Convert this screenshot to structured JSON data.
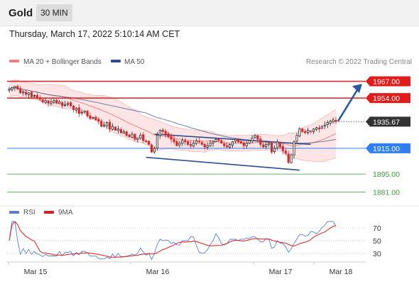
{
  "header": {
    "title": "Gold",
    "timeframe": "30 MIN"
  },
  "datetime": "Thursday, March 17, 2022 5:10:14 AM CET",
  "credit": "Research © 2022 Trading Central",
  "legend": [
    {
      "label": "MA 20 + Bollinger Bands",
      "color": "#f08080"
    },
    {
      "label": "MA 50",
      "color": "#2b4f8c"
    }
  ],
  "rsi_legend": [
    {
      "label": "RSI",
      "color": "#5b7fd6"
    },
    {
      "label": "9MA",
      "color": "#e21b1b"
    }
  ],
  "colors": {
    "resistance": "#e21b1b",
    "support": "#2f7fef",
    "target": "#3a9b3a",
    "arrow": "#2b5aa0",
    "channel": "#2b4f8c",
    "up": "#2b2b2b",
    "down": "#d9262b"
  },
  "chart_data": [
    {
      "type": "candlestick",
      "x_labels": [
        "Mar 15",
        "Mar 16",
        "Mar 17",
        "Mar 18"
      ],
      "ylim": [
        1873,
        1975
      ],
      "price_levels": [
        {
          "value": 1967.0,
          "label": "1967.00",
          "kind": "resistance"
        },
        {
          "value": 1954.0,
          "label": "1954.00",
          "kind": "resistance"
        },
        {
          "value": 1935.67,
          "label": "1935.67",
          "kind": "current"
        },
        {
          "value": 1915.0,
          "label": "1915.00",
          "kind": "pivot"
        },
        {
          "value": 1895.0,
          "label": "1895.00",
          "kind": "support"
        },
        {
          "value": 1881.0,
          "label": "1881.00",
          "kind": "support"
        }
      ],
      "close": [
        1961,
        1962,
        1963,
        1961,
        1958,
        1959,
        1957,
        1958,
        1955,
        1956,
        1954,
        1953,
        1951,
        1952,
        1950,
        1951,
        1952,
        1950,
        1951,
        1948,
        1949,
        1950,
        1948,
        1945,
        1946,
        1942,
        1943,
        1944,
        1940,
        1938,
        1939,
        1937,
        1936,
        1932,
        1933,
        1935,
        1930,
        1932,
        1929,
        1930,
        1927,
        1928,
        1925,
        1924,
        1926,
        1922,
        1923,
        1925,
        1921,
        1920,
        1918,
        1912,
        1915,
        1925,
        1929,
        1928,
        1926,
        1924,
        1922,
        1920,
        1917,
        1919,
        1921,
        1920,
        1918,
        1917,
        1919,
        1921,
        1920,
        1918,
        1916,
        1917,
        1919,
        1920,
        1922,
        1921,
        1919,
        1917,
        1916,
        1918,
        1920,
        1922,
        1920,
        1919,
        1917,
        1919,
        1921,
        1923,
        1925,
        1922,
        1918,
        1916,
        1918,
        1919,
        1912,
        1915,
        1920,
        1916,
        1913,
        1911,
        1904,
        1910,
        1920,
        1925,
        1930,
        1928,
        1927,
        1929,
        1928,
        1930,
        1931,
        1930,
        1932,
        1933,
        1935,
        1936,
        1937,
        1935.67
      ]
    },
    {
      "type": "line",
      "name": "RSI",
      "ylim": [
        20,
        80
      ],
      "y_ticks": [
        70,
        50,
        30
      ]
    }
  ]
}
